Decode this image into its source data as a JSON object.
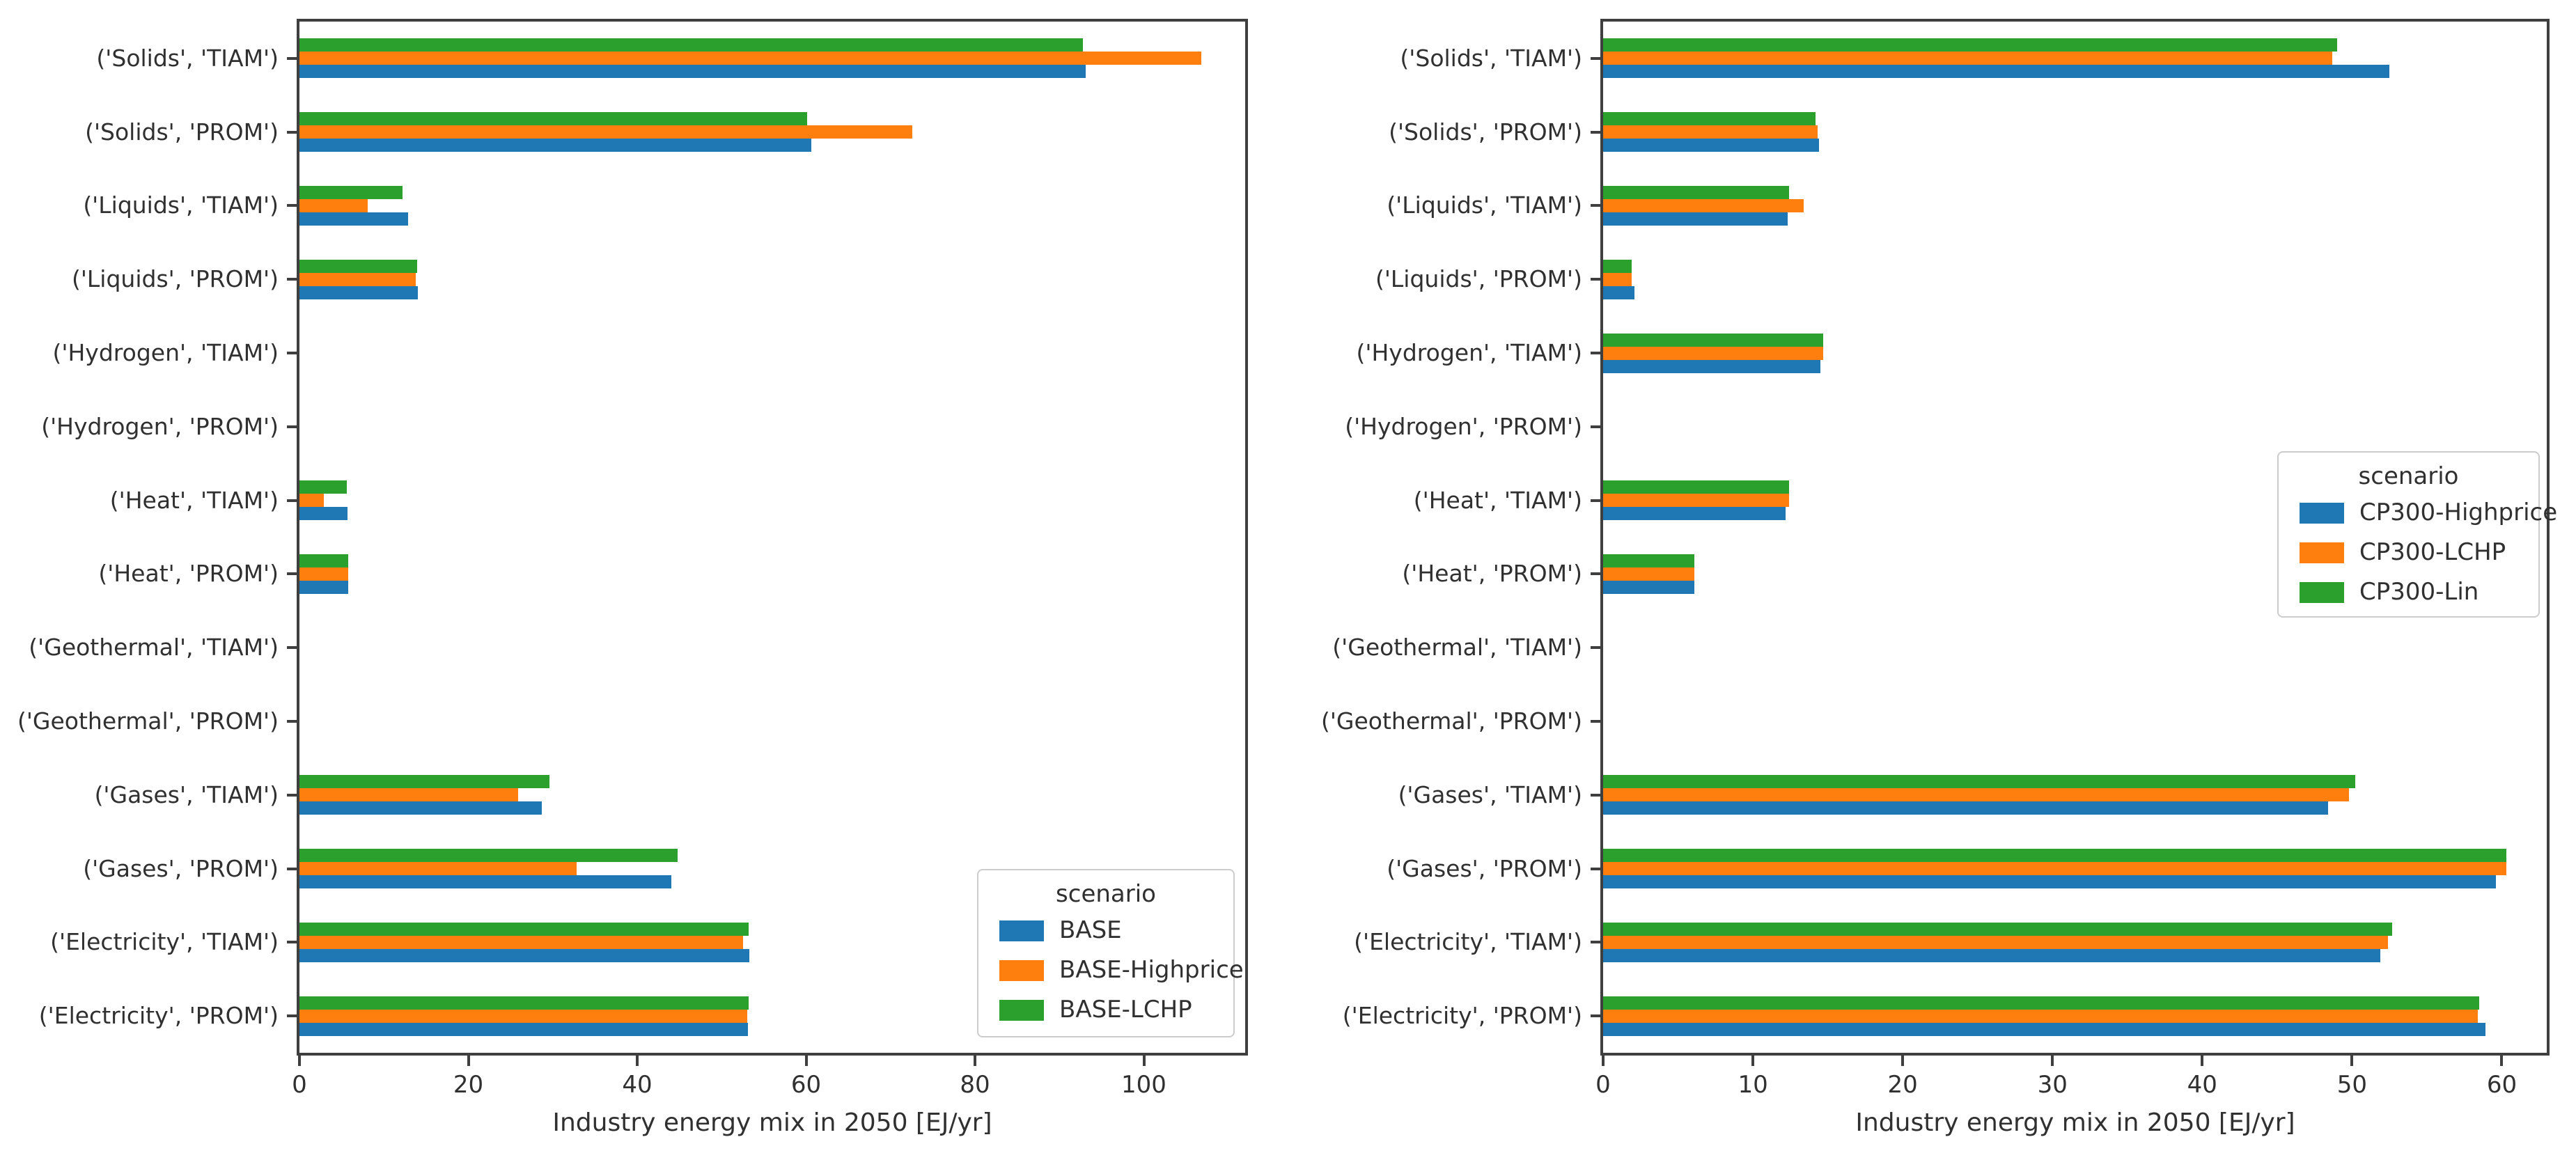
{
  "figure": {
    "background": "#ffffff",
    "axis_color": "#3f3f3f",
    "text_color": "#303030"
  },
  "chart_data": [
    {
      "type": "bar",
      "orientation": "horizontal",
      "xlabel": "Industry energy mix in 2050 [EJ/yr]",
      "categories": [
        "('Solids', 'TIAM')",
        "('Solids', 'PROM')",
        "('Liquids', 'TIAM')",
        "('Liquids', 'PROM')",
        "('Hydrogen', 'TIAM')",
        "('Hydrogen', 'PROM')",
        "('Heat', 'TIAM')",
        "('Heat', 'PROM')",
        "('Geothermal', 'TIAM')",
        "('Geothermal', 'PROM')",
        "('Gases', 'TIAM')",
        "('Gases', 'PROM')",
        "('Electricity', 'TIAM')",
        "('Electricity', 'PROM')"
      ],
      "series": [
        {
          "name": "BASE",
          "color": "#1f77b4",
          "values": [
            93.1,
            60.6,
            12.9,
            14.0,
            0,
            0,
            5.7,
            5.8,
            0,
            0,
            28.7,
            44.0,
            53.3,
            53.1
          ]
        },
        {
          "name": "BASE-Highprice",
          "color": "#ff7f0e",
          "values": [
            106.8,
            72.6,
            8.1,
            13.8,
            0,
            0,
            2.9,
            5.8,
            0,
            0,
            25.9,
            32.8,
            52.5,
            53.0
          ]
        },
        {
          "name": "BASE-LCHP",
          "color": "#2ca02c",
          "values": [
            92.8,
            60.1,
            12.2,
            13.9,
            0,
            0,
            5.6,
            5.8,
            0,
            0,
            29.6,
            44.8,
            53.2,
            53.2
          ]
        }
      ],
      "xlim": [
        0,
        112
      ],
      "xticks": [
        0,
        20,
        40,
        60,
        80,
        100
      ],
      "grid": false,
      "legend_title": "scenario",
      "legend_position": "lower right"
    },
    {
      "type": "bar",
      "orientation": "horizontal",
      "xlabel": "Industry energy mix in 2050 [EJ/yr]",
      "categories": [
        "('Solids', 'TIAM')",
        "('Solids', 'PROM')",
        "('Liquids', 'TIAM')",
        "('Liquids', 'PROM')",
        "('Hydrogen', 'TIAM')",
        "('Hydrogen', 'PROM')",
        "('Heat', 'TIAM')",
        "('Heat', 'PROM')",
        "('Geothermal', 'TIAM')",
        "('Geothermal', 'PROM')",
        "('Gases', 'TIAM')",
        "('Gases', 'PROM')",
        "('Electricity', 'TIAM')",
        "('Electricity', 'PROM')"
      ],
      "series": [
        {
          "name": "CP300-Highprice",
          "color": "#1f77b4",
          "values": [
            52.5,
            14.4,
            12.3,
            2.1,
            14.5,
            0,
            12.2,
            6.1,
            0,
            0,
            48.4,
            59.6,
            51.9,
            58.9
          ]
        },
        {
          "name": "CP300-LCHP",
          "color": "#ff7f0e",
          "values": [
            48.7,
            14.3,
            13.4,
            1.9,
            14.7,
            0,
            12.4,
            6.1,
            0,
            0,
            49.8,
            60.3,
            52.4,
            58.4
          ]
        },
        {
          "name": "CP300-Lin",
          "color": "#2ca02c",
          "values": [
            49.0,
            14.2,
            12.4,
            1.9,
            14.7,
            0,
            12.4,
            6.1,
            0,
            0,
            50.2,
            60.3,
            52.7,
            58.5
          ]
        }
      ],
      "xlim": [
        0,
        63
      ],
      "xticks": [
        0,
        10,
        20,
        30,
        40,
        50,
        60
      ],
      "grid": false,
      "legend_title": "scenario",
      "legend_position": "center right"
    }
  ]
}
